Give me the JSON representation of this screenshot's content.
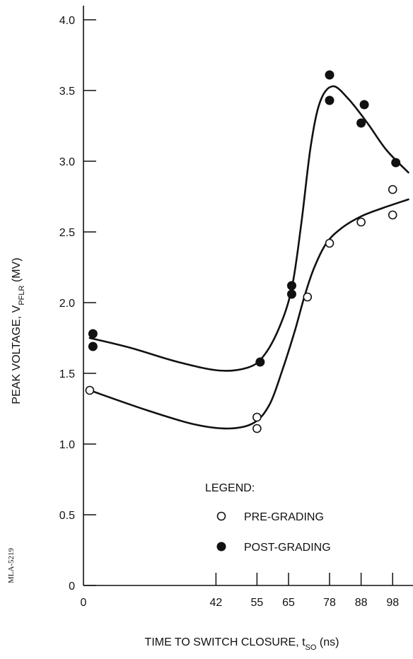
{
  "chart_data": {
    "type": "scatter",
    "xlabel": {
      "main": "TIME TO SWITCH CLOSURE, t",
      "sub": "SO",
      "unit": " (ns)"
    },
    "ylabel": {
      "main": "PEAK VOLTAGE, V",
      "sub": "PFLR",
      "unit": " (MV)"
    },
    "xlim": [
      0,
      140
    ],
    "ylim": [
      0,
      4.1
    ],
    "x_ticks": [
      0,
      42,
      55,
      65,
      78,
      88,
      98
    ],
    "x_tick_labels": [
      "0",
      "42",
      "55",
      "65",
      "78",
      "88",
      "98"
    ],
    "y_ticks": [
      0,
      0.5,
      1.0,
      1.5,
      2.0,
      2.5,
      3.0,
      3.5,
      4.0
    ],
    "y_tick_labels": [
      "0",
      "0.5",
      "1.0",
      "1.5",
      "2.0",
      "2.5",
      "3.0",
      "3.5",
      "4.0"
    ],
    "series": [
      {
        "name": "PRE-GRADING",
        "marker": "open-circle",
        "color": "#111111",
        "points": [
          [
            2,
            1.38
          ],
          [
            55,
            1.19
          ],
          [
            55,
            1.11
          ],
          [
            71,
            2.04
          ],
          [
            78,
            2.42
          ],
          [
            88,
            2.57
          ],
          [
            98,
            2.8
          ],
          [
            98,
            2.62
          ]
        ],
        "curve": [
          [
            2,
            1.38
          ],
          [
            20,
            1.24
          ],
          [
            35,
            1.14
          ],
          [
            46,
            1.11
          ],
          [
            54,
            1.15
          ],
          [
            59,
            1.28
          ],
          [
            63,
            1.52
          ],
          [
            67,
            1.8
          ],
          [
            70,
            2.04
          ],
          [
            73,
            2.24
          ],
          [
            77,
            2.42
          ],
          [
            82,
            2.53
          ],
          [
            88,
            2.61
          ],
          [
            95,
            2.67
          ],
          [
            103,
            2.73
          ]
        ]
      },
      {
        "name": "POST-GRADING",
        "marker": "filled-circle",
        "color": "#111111",
        "points": [
          [
            3,
            1.78
          ],
          [
            3,
            1.69
          ],
          [
            56,
            1.58
          ],
          [
            66,
            2.12
          ],
          [
            66,
            2.06
          ],
          [
            78,
            3.61
          ],
          [
            78,
            3.43
          ],
          [
            89,
            3.4
          ],
          [
            88,
            3.27
          ],
          [
            99,
            2.99
          ]
        ],
        "curve": [
          [
            2,
            1.75
          ],
          [
            15,
            1.68
          ],
          [
            30,
            1.58
          ],
          [
            43,
            1.52
          ],
          [
            52,
            1.54
          ],
          [
            57,
            1.62
          ],
          [
            62,
            1.82
          ],
          [
            66,
            2.1
          ],
          [
            69,
            2.55
          ],
          [
            72,
            3.1
          ],
          [
            75,
            3.42
          ],
          [
            79,
            3.53
          ],
          [
            84,
            3.44
          ],
          [
            90,
            3.27
          ],
          [
            96,
            3.08
          ],
          [
            103,
            2.92
          ]
        ]
      }
    ],
    "legend": {
      "title": "LEGEND:",
      "position": "bottom-right"
    },
    "grid": false,
    "side_code": "MLA-5219"
  }
}
